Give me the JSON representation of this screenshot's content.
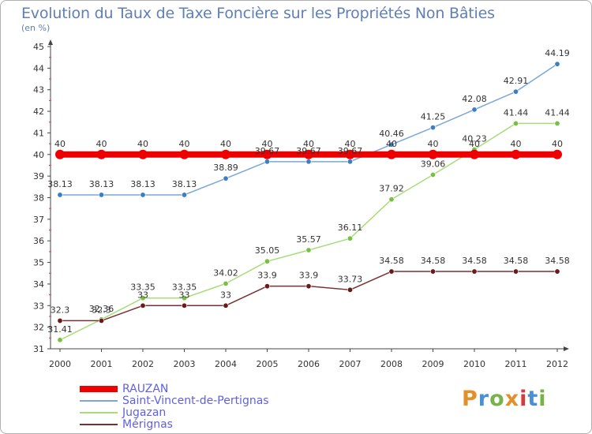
{
  "title": "Evolution du Taux de Taxe Foncière sur les Propriétés Non Bâties",
  "subtitle": "(en %)",
  "logo": {
    "text": "Proxiti",
    "colors": [
      "#e3902b",
      "#4a8fd6",
      "#79b24a",
      "#e3902b",
      "#d23c3c",
      "#4a8fd6",
      "#79b24a"
    ]
  },
  "chart_data": {
    "type": "line",
    "categories": [
      "2000",
      "2001",
      "2002",
      "2003",
      "2004",
      "2005",
      "2006",
      "2007",
      "2008",
      "2009",
      "2010",
      "2011",
      "2012"
    ],
    "ylim": [
      31,
      45
    ],
    "yticks": [
      31,
      32,
      33,
      34,
      35,
      36,
      37,
      38,
      39,
      40,
      41,
      42,
      43,
      44,
      45
    ],
    "grid": false,
    "legend_position": "bottom-left",
    "series": [
      {
        "name": "RAUZAN",
        "color": "#ee0000",
        "width": 8,
        "dot": 6,
        "values": [
          40,
          40,
          40,
          40,
          40,
          40,
          40,
          40,
          40,
          40,
          40,
          40,
          40
        ],
        "labels": [
          "40",
          "40",
          "40",
          "40",
          "40",
          "40",
          "40",
          "40",
          "40",
          "40",
          "40",
          "40",
          "40"
        ]
      },
      {
        "name": "Saint-Vincent-de-Pertignas",
        "color": "#7aa7d8",
        "dotColor": "#3a7fc4",
        "width": 1.5,
        "dot": 3.2,
        "values": [
          38.13,
          38.13,
          38.13,
          38.13,
          38.89,
          39.67,
          39.67,
          39.67,
          40.46,
          41.25,
          42.08,
          42.91,
          44.19
        ],
        "labels": [
          "38.13",
          "38.13",
          "38.13",
          "38.13",
          "38.89",
          "39.67",
          "39.67",
          "39.67",
          "40.46",
          "41.25",
          "42.08",
          "42.91",
          "44.19"
        ]
      },
      {
        "name": "Jugazan",
        "color": "#a8dc78",
        "dotColor": "#78c040",
        "width": 1.5,
        "dot": 3.2,
        "values": [
          31.41,
          32.36,
          33.35,
          33.35,
          34.02,
          35.05,
          35.57,
          36.11,
          37.92,
          39.06,
          40.23,
          41.44,
          41.44
        ],
        "labels": [
          "31.41",
          "32.36",
          "33.35",
          "33.35",
          "34.02",
          "35.05",
          "35.57",
          "36.11",
          "37.92",
          "39.06",
          "40.23",
          "41.44",
          "41.44"
        ]
      },
      {
        "name": "Mérignas",
        "color": "#7a3030",
        "dotColor": "#6a1a1a",
        "width": 1.5,
        "dot": 3.2,
        "values": [
          32.3,
          32.3,
          33,
          33,
          33,
          33.9,
          33.9,
          33.73,
          34.58,
          34.58,
          34.58,
          34.58,
          34.58
        ],
        "labels": [
          "32.3",
          "32.3",
          "33",
          "33",
          "33",
          "33.9",
          "33.9",
          "33.73",
          "34.58",
          "34.58",
          "34.58",
          "34.58",
          "34.58"
        ]
      }
    ]
  }
}
